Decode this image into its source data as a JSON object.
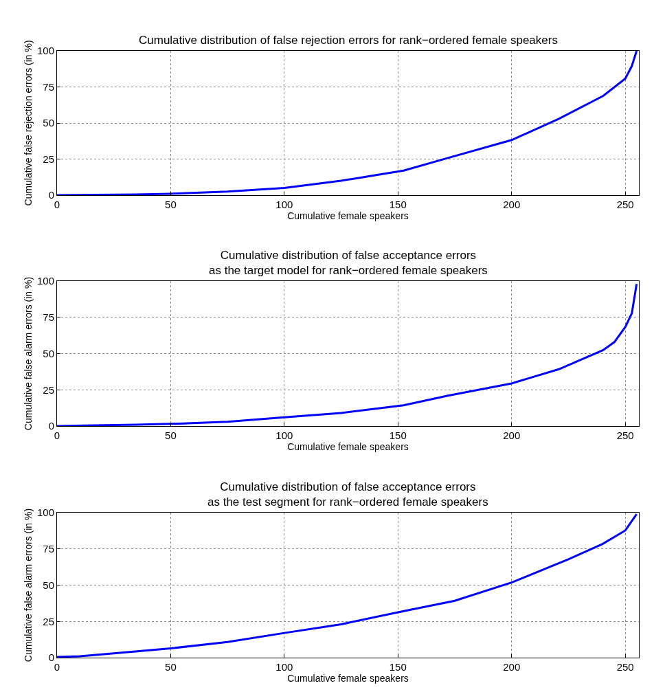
{
  "chart_data": [
    {
      "type": "line",
      "title": "Cumulative distribution of false rejection errors for rank−ordered female speakers",
      "xlabel": "Cumulative female speakers",
      "ylabel": "Cumulative false rejection errors (in %)",
      "series": [
        {
          "color": "#0000ff",
          "x": [
            0,
            35,
            50,
            75,
            100,
            125,
            152.5,
            172,
            200,
            220.8,
            240.3,
            250,
            252.9,
            255
          ],
          "values": [
            0,
            0.5,
            1,
            2.5,
            5,
            10,
            17,
            25.8,
            38.2,
            52.9,
            68.8,
            80.7,
            89.5,
            100
          ]
        }
      ],
      "xlim": [
        0,
        256
      ],
      "xticks": [
        0,
        50,
        100,
        150,
        200,
        250
      ],
      "ylim": [
        0,
        100
      ],
      "yticks": [
        0,
        25,
        50,
        75,
        100
      ],
      "grid": true,
      "marker": "none",
      "line_style": "solid"
    },
    {
      "type": "line",
      "title": "Cumulative distribution of false acceptance errors\nas the target model for rank−ordered female speakers",
      "xlabel": "Cumulative female speakers",
      "ylabel": "Cumulative false alarm errors (in %)",
      "series": [
        {
          "color": "#0000ff",
          "x": [
            0,
            12,
            35,
            50,
            75,
            100,
            125,
            152.5,
            172,
            200,
            220.8,
            240.3,
            245.2,
            250,
            252.9,
            255
          ],
          "values": [
            0,
            0.3,
            1,
            1.5,
            3,
            6,
            9,
            14.3,
            21,
            29.4,
            39.2,
            52.4,
            57.9,
            68.3,
            77.8,
            98
          ]
        }
      ],
      "xlim": [
        0,
        256
      ],
      "xticks": [
        0,
        50,
        100,
        150,
        200,
        250
      ],
      "ylim": [
        0,
        100
      ],
      "yticks": [
        0,
        25,
        50,
        75,
        100
      ],
      "grid": true,
      "marker": "none",
      "line_style": "solid"
    },
    {
      "type": "line",
      "title": "Cumulative distribution of false acceptance errors\nas the test segment for rank−ordered female speakers",
      "xlabel": "Cumulative female speakers",
      "ylabel": "Cumulative false alarm errors (in %)",
      "series": [
        {
          "color": "#0000ff",
          "x": [
            0,
            10,
            25,
            50,
            75,
            100,
            125,
            150,
            175,
            200,
            225,
            240,
            250,
            255
          ],
          "values": [
            0.5,
            1,
            3,
            6.4,
            10.8,
            17,
            23,
            31.3,
            39.2,
            51.8,
            67.8,
            78.4,
            87.7,
            99
          ]
        }
      ],
      "xlim": [
        0,
        256
      ],
      "xticks": [
        0,
        50,
        100,
        150,
        200,
        250
      ],
      "ylim": [
        0,
        100
      ],
      "yticks": [
        0,
        25,
        50,
        75,
        100
      ],
      "grid": true,
      "marker": "none",
      "line_style": "solid"
    }
  ]
}
